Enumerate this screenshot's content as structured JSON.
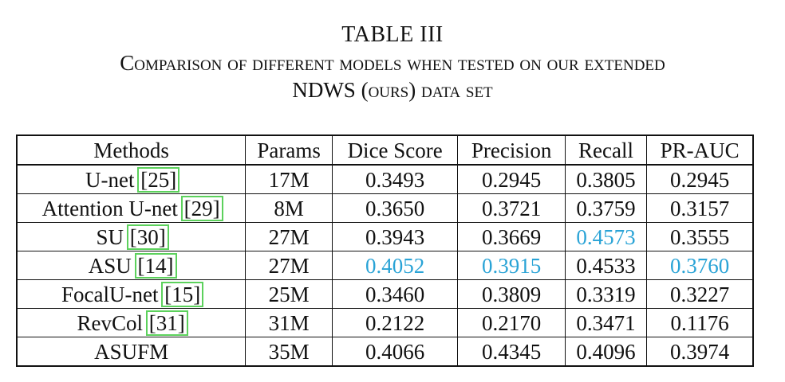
{
  "caption": {
    "label": "TABLE III",
    "line1": "Comparison of different models when tested on our extended",
    "line2": "NDWS (ours) data set"
  },
  "table": {
    "headers": [
      "Methods",
      "Params",
      "Dice Score",
      "Precision",
      "Recall",
      "PR-AUC"
    ],
    "rows": [
      {
        "method": "U-net",
        "ref": "[25]",
        "params": "17M",
        "dice": "0.3493",
        "precision": "0.2945",
        "recall": "0.3805",
        "prauc": "0.2945"
      },
      {
        "method": "Attention U-net",
        "ref": "[29]",
        "params": "8M",
        "dice": "0.3650",
        "precision": "0.3721",
        "recall": "0.3759",
        "prauc": "0.3157"
      },
      {
        "method": "SU",
        "ref": "[30]",
        "params": "27M",
        "dice": "0.3943",
        "precision": "0.3669",
        "recall": "0.4573",
        "prauc": "0.3555"
      },
      {
        "method": "ASU",
        "ref": "[14]",
        "params": "27M",
        "dice": "0.4052",
        "precision": "0.3915",
        "recall": "0.4533",
        "prauc": "0.3760"
      },
      {
        "method": "FocalU-net",
        "ref": "[15]",
        "params": "25M",
        "dice": "0.3460",
        "precision": "0.3809",
        "recall": "0.3319",
        "prauc": "0.3227"
      },
      {
        "method": "RevCol",
        "ref": "[31]",
        "params": "31M",
        "dice": "0.2122",
        "precision": "0.2170",
        "recall": "0.3471",
        "prauc": "0.1176"
      },
      {
        "method": "ASUFM",
        "ref": "",
        "params": "35M",
        "dice": "0.4066",
        "precision": "0.4345",
        "recall": "0.4096",
        "prauc": "0.3974"
      }
    ]
  },
  "colors": {
    "highlight_blue": "#29a3d6",
    "citation_box_green": "#5cd15c"
  }
}
